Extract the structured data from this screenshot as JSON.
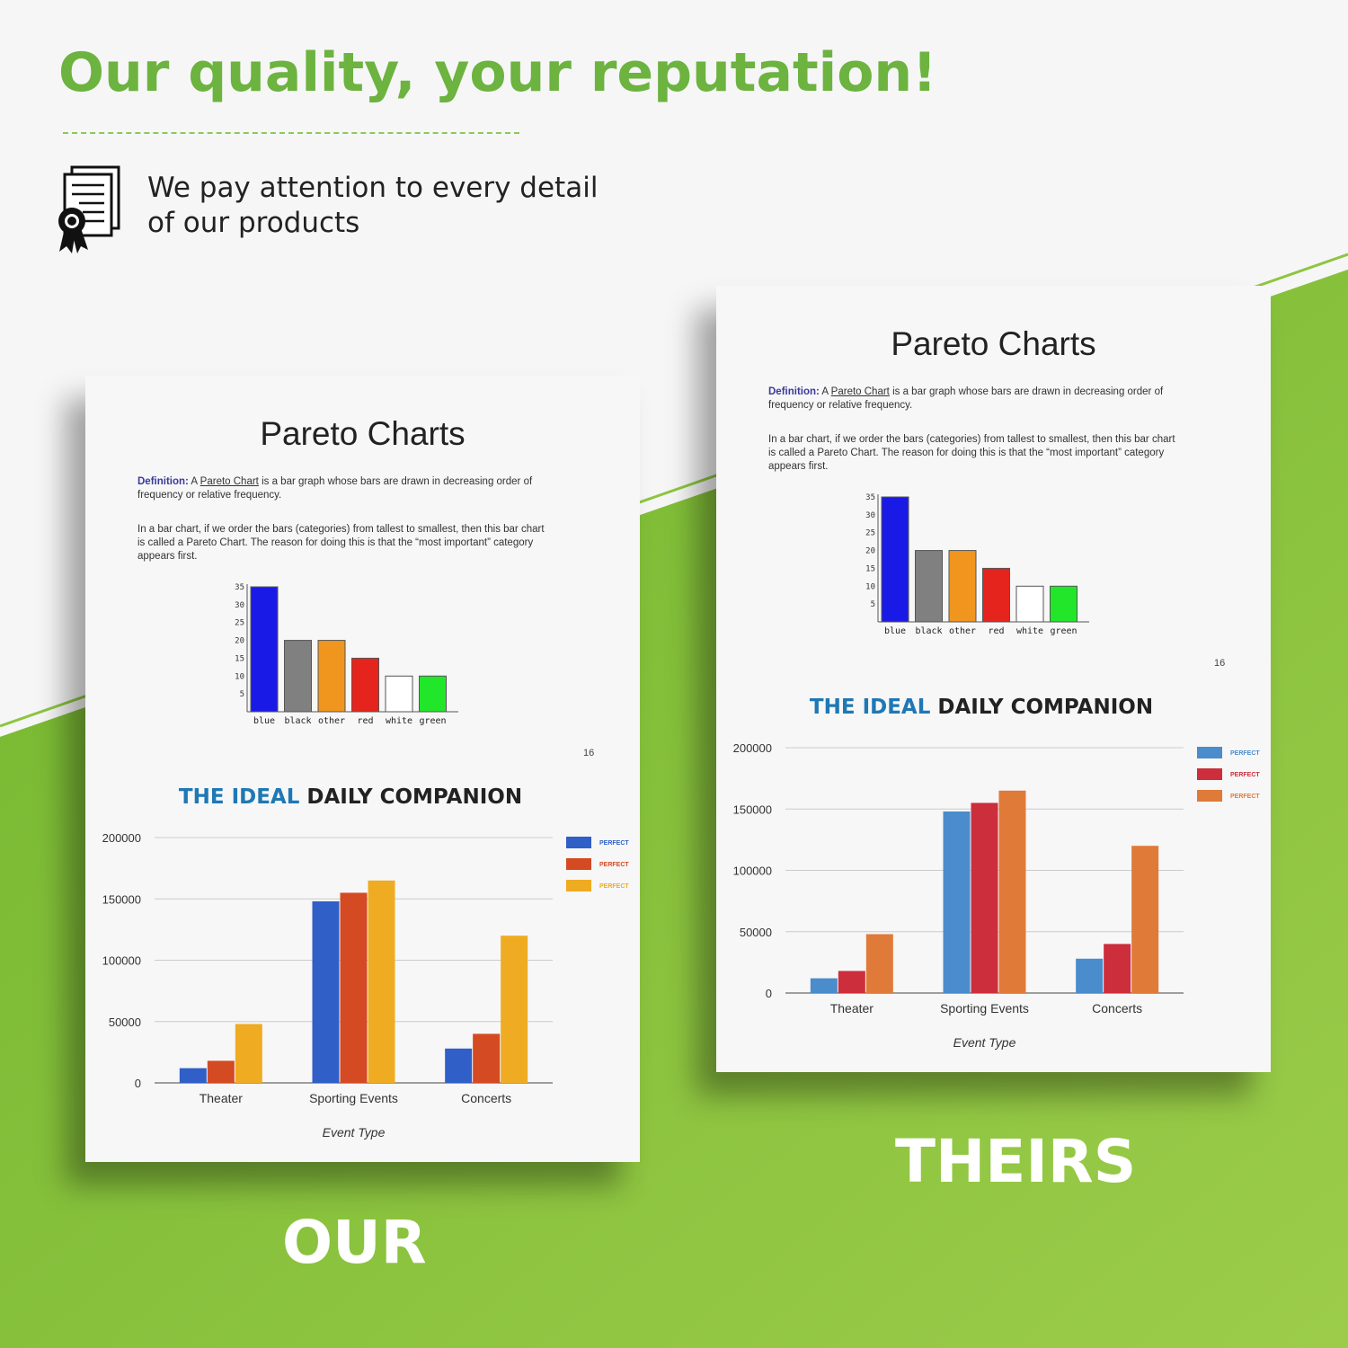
{
  "header": {
    "title": "Our quality, your reputation!",
    "tagline_line1": "We pay attention to every detail",
    "tagline_line2": "of our products",
    "icon": "certificate-document-icon"
  },
  "colors": {
    "brand_green": "#6cb33f",
    "background_green": "#8cc63f"
  },
  "labels": {
    "ours": "OUR",
    "theirs": "THEIRS"
  },
  "page": {
    "title": "Pareto Charts",
    "definition_label": "Definition:",
    "definition_a": "A",
    "definition_link": "Pareto Chart",
    "definition_rest": "is a bar graph whose bars are drawn in decreasing order of frequency or relative frequency.",
    "paragraph": "In a bar chart, if we order the bars (categories) from tallest to smallest, then this bar chart is called a Pareto Chart.  The reason for doing this is that the “most important” category appears first.",
    "page_number": "16",
    "companion_ideal": "THE IDEAL",
    "companion_rest": "DAILY COMPANION"
  },
  "chart_data": [
    {
      "type": "bar",
      "title": "",
      "categories": [
        "blue",
        "black",
        "other",
        "red",
        "white",
        "green"
      ],
      "values": [
        35,
        20,
        20,
        15,
        10,
        10
      ],
      "colors": [
        "#1a1ae6",
        "#808080",
        "#f0961e",
        "#e6241e",
        "#ffffff",
        "#22e62a"
      ],
      "yticks": [
        5,
        10,
        15,
        20,
        25,
        30,
        35
      ],
      "ylim": [
        0,
        35
      ],
      "grid": false
    },
    {
      "type": "bar",
      "title": "",
      "xlabel": "Event Type",
      "categories": [
        "Theater",
        "Sporting Events",
        "Concerts"
      ],
      "ylim": [
        0,
        200000
      ],
      "yticks": [
        0,
        50000,
        100000,
        150000,
        200000
      ],
      "grid": true,
      "legend": "right",
      "series": [
        {
          "name": "PERFECT",
          "color": "#2f5fc7",
          "values": [
            12000,
            148000,
            28000
          ]
        },
        {
          "name": "PERFECT",
          "color": "#d44a22",
          "values": [
            18000,
            155000,
            40000
          ]
        },
        {
          "name": "PERFECT",
          "color": "#efab22",
          "values": [
            48000,
            165000,
            120000
          ]
        }
      ]
    }
  ],
  "theirs_colors": [
    "#4a8ccc",
    "#cc2e3c",
    "#e07a38"
  ]
}
